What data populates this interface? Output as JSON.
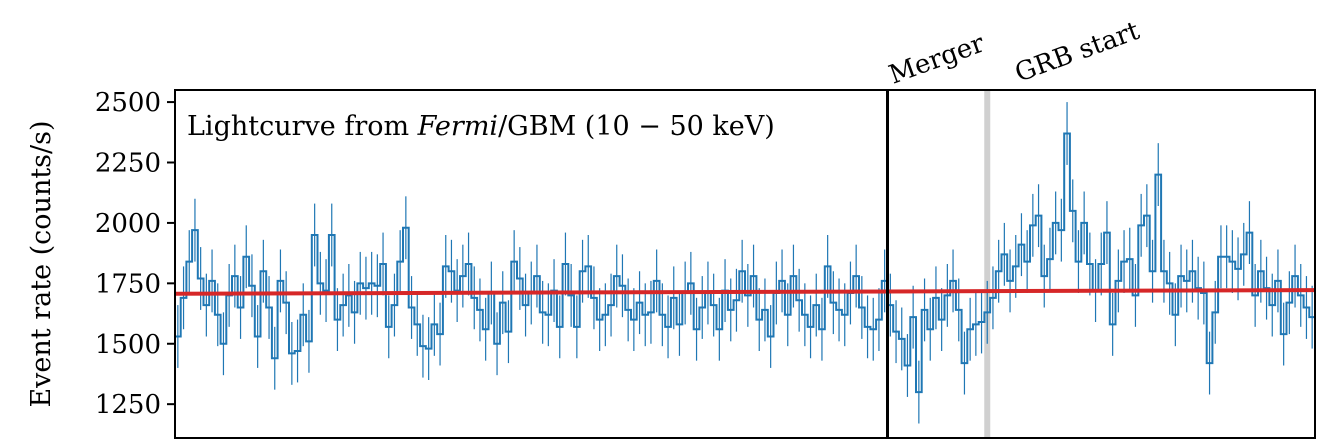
{
  "chart_data": {
    "type": "line",
    "title": "",
    "annotation": {
      "prefix": "Lightcurve from ",
      "italic": "Fermi",
      "suffix": "/GBM (10 − 50 keV)"
    },
    "xlabel": "",
    "ylabel": "Event rate (counts/s)",
    "xlim": [
      0,
      200
    ],
    "ylim": [
      1110,
      2550
    ],
    "yticks": [
      1250,
      1500,
      1750,
      2000,
      2250,
      2500
    ],
    "grid": false,
    "markers": [
      {
        "label": "Merger",
        "x": 125,
        "color": "#000000"
      },
      {
        "label": "GRB start",
        "x": 142.5,
        "color": "#d0d0d0"
      }
    ],
    "background_fit": {
      "x": [
        0,
        200
      ],
      "y": [
        1707,
        1722
      ],
      "color": "#d62728"
    },
    "series": [
      {
        "color": "#1f77b4",
        "bin_width": 1,
        "errors": 130,
        "values": [
          1530,
          1690,
          1840,
          1970,
          1770,
          1660,
          1760,
          1620,
          1500,
          1700,
          1780,
          1650,
          1860,
          1740,
          1530,
          1800,
          1650,
          1440,
          1760,
          1670,
          1460,
          1470,
          1620,
          1510,
          1950,
          1750,
          1720,
          1950,
          1600,
          1660,
          1700,
          1630,
          1750,
          1730,
          1750,
          1740,
          1830,
          1570,
          1660,
          1840,
          1980,
          1650,
          1580,
          1490,
          1480,
          1580,
          1540,
          1820,
          1800,
          1720,
          1780,
          1830,
          1690,
          1640,
          1560,
          1710,
          1500,
          1670,
          1550,
          1840,
          1770,
          1660,
          1710,
          1780,
          1630,
          1620,
          1720,
          1570,
          1830,
          1700,
          1570,
          1800,
          1820,
          1690,
          1600,
          1620,
          1660,
          1780,
          1740,
          1640,
          1600,
          1670,
          1620,
          1630,
          1760,
          1620,
          1570,
          1690,
          1580,
          1710,
          1750,
          1560,
          1650,
          1710,
          1660,
          1560,
          1720,
          1640,
          1680,
          1800,
          1700,
          1780,
          1600,
          1640,
          1530,
          1710,
          1760,
          1620,
          1780,
          1680,
          1620,
          1570,
          1660,
          1560,
          1820,
          1670,
          1640,
          1620,
          1710,
          1780,
          1650,
          1570,
          1560,
          1600,
          1760,
          1660,
          1550,
          1520,
          1410,
          1610,
          1300,
          1640,
          1560,
          1690,
          1600,
          1700,
          1760,
          1640,
          1420,
          1560,
          1580,
          1590,
          1630,
          1690,
          1800,
          1870,
          1760,
          1820,
          1910,
          1840,
          1990,
          2030,
          1780,
          1850,
          2000,
          1970,
          2370,
          2050,
          1840,
          2000,
          1830,
          1720,
          1830,
          1960,
          1580,
          1760,
          1840,
          1850,
          1700,
          1990,
          2030,
          1800,
          2200,
          1800,
          1750,
          1620,
          1780,
          1760,
          1800,
          1730,
          1710,
          1420,
          1630,
          1860,
          1860,
          1840,
          1810,
          1870,
          1960,
          1700,
          1800,
          1730,
          1660,
          1760,
          1540,
          1670,
          1780,
          1700,
          1650,
          1610,
          1630,
          1650
        ]
      }
    ]
  }
}
